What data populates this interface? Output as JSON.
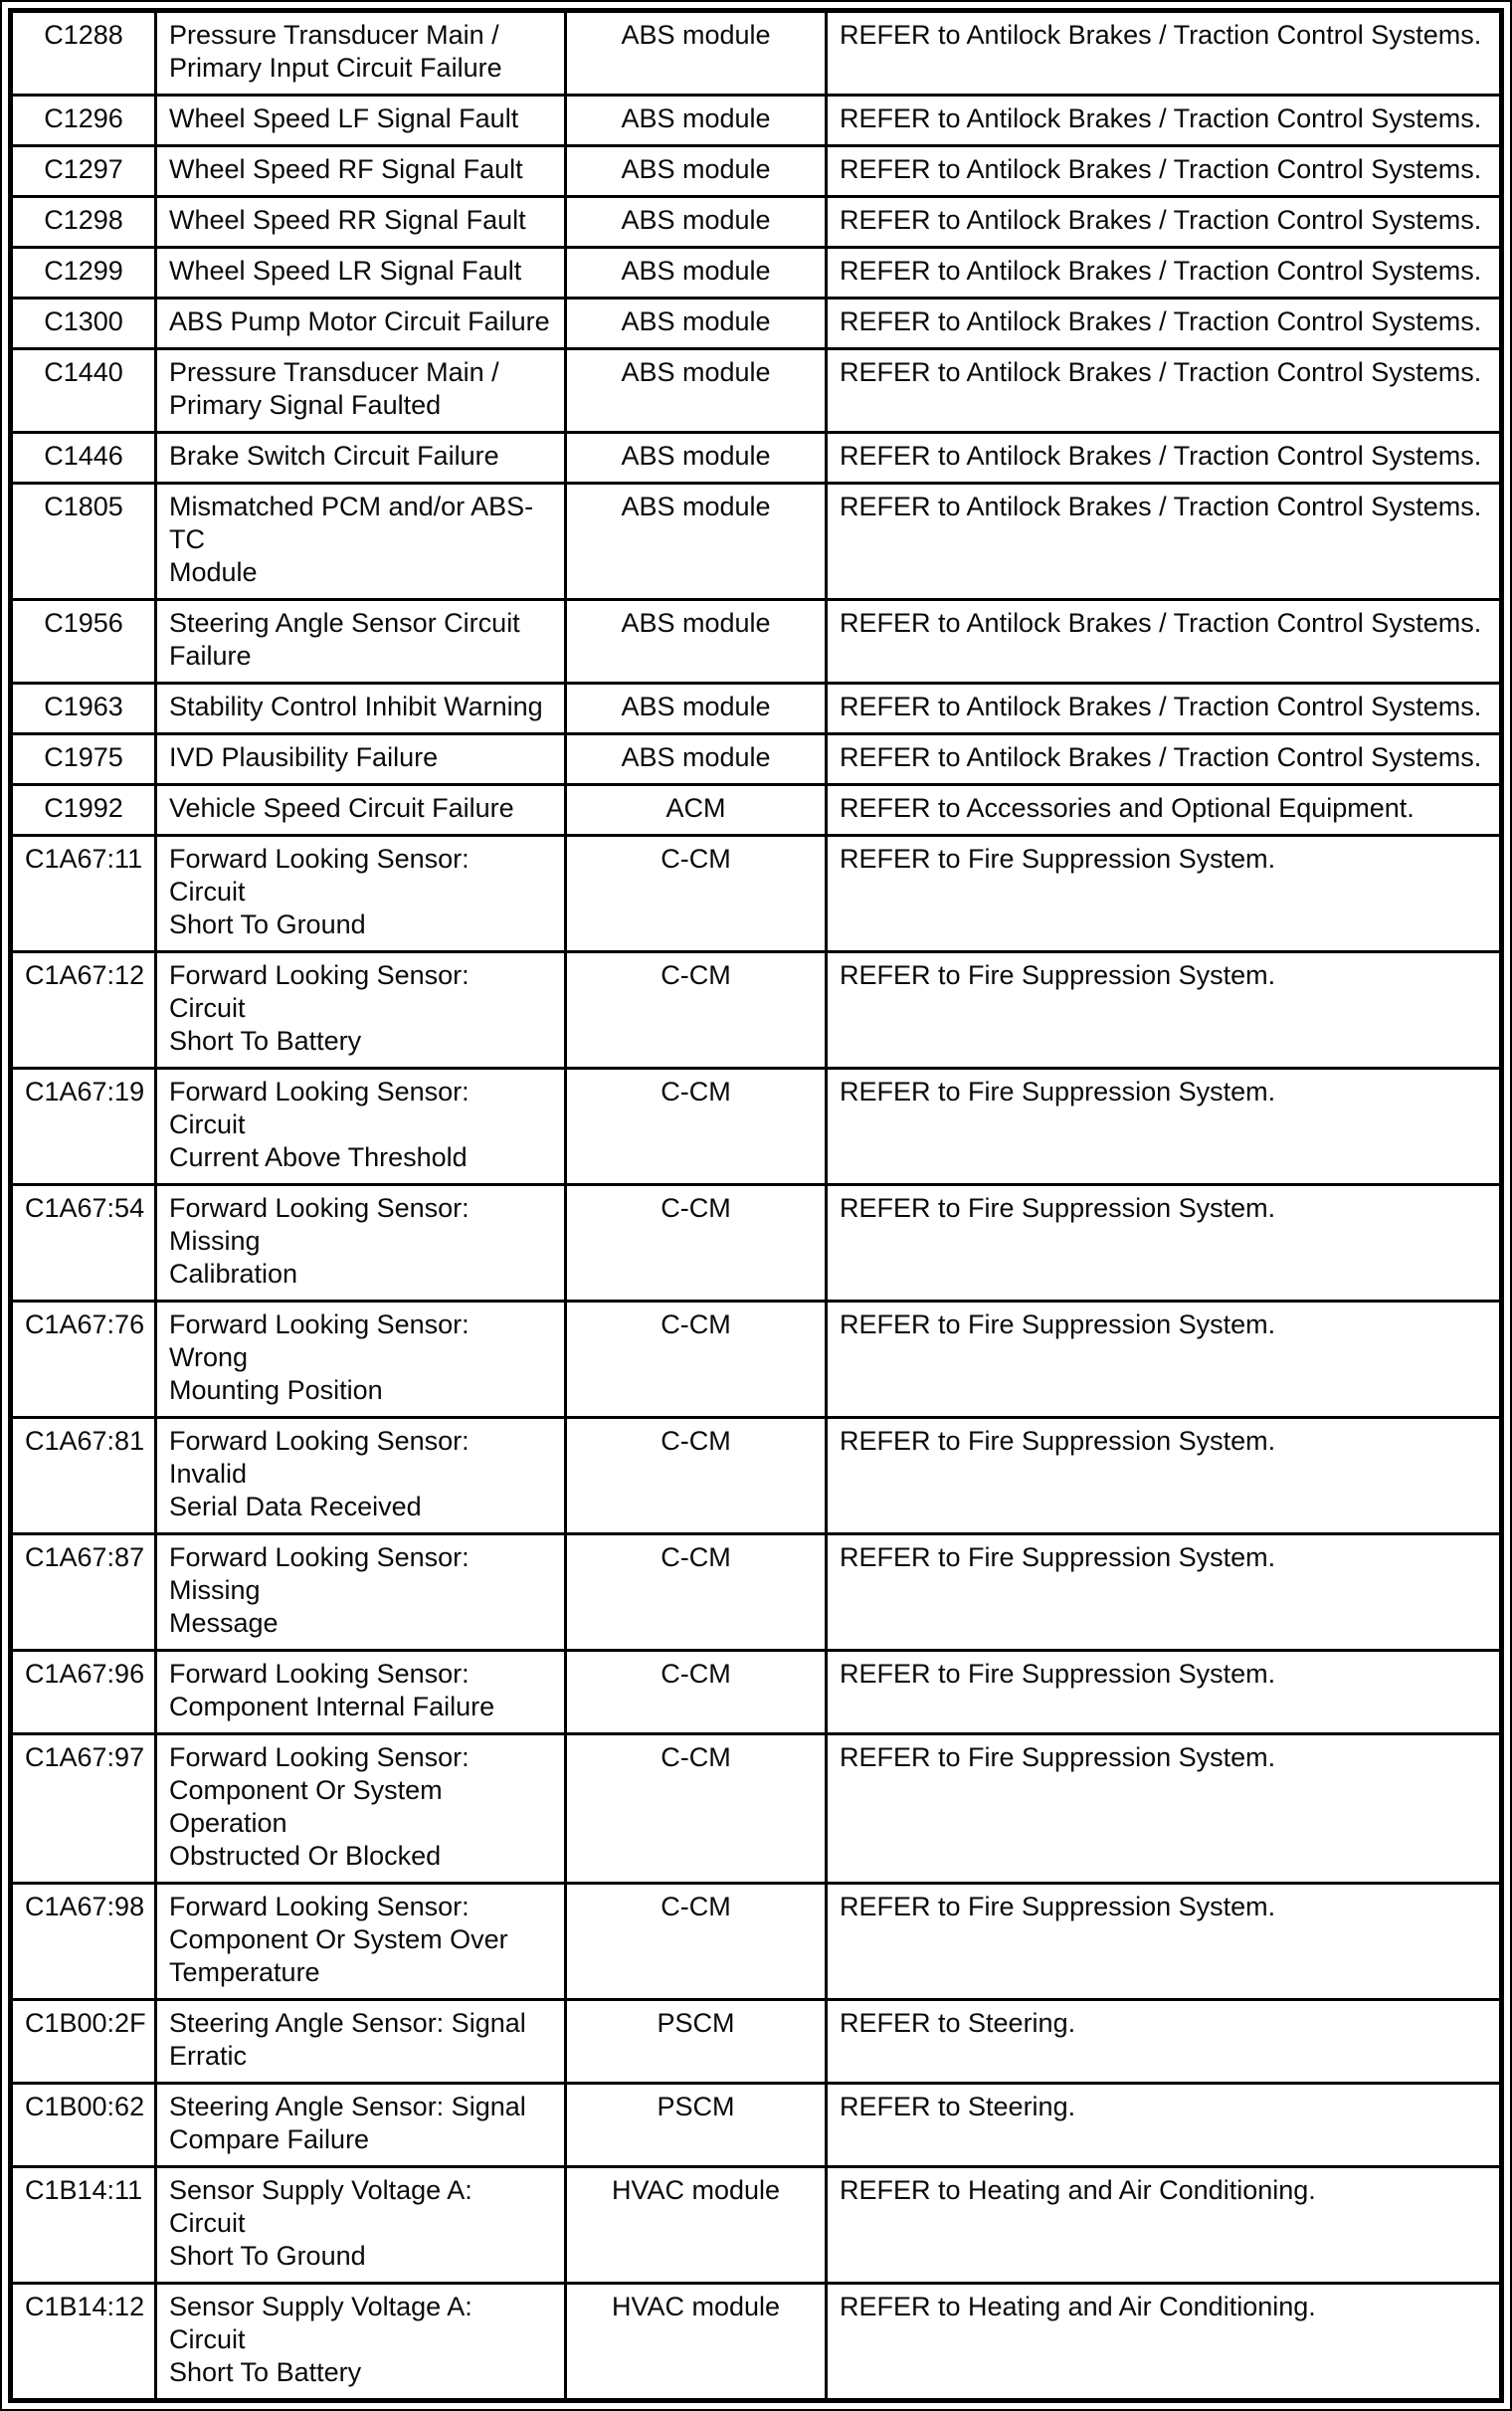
{
  "colors": {
    "background": "#ffffff",
    "border": "#000000",
    "text": "#0a0a0a"
  },
  "table": {
    "rows": [
      {
        "code": "C1288",
        "description": "Pressure Transducer Main /\nPrimary Input Circuit Failure",
        "module": "ABS module",
        "action": "REFER to Antilock Brakes / Traction Control Systems."
      },
      {
        "code": "C1296",
        "description": "Wheel Speed LF Signal Fault",
        "module": "ABS module",
        "action": "REFER to Antilock Brakes / Traction Control Systems."
      },
      {
        "code": "C1297",
        "description": "Wheel Speed RF Signal Fault",
        "module": "ABS module",
        "action": "REFER to Antilock Brakes / Traction Control Systems."
      },
      {
        "code": "C1298",
        "description": "Wheel Speed RR Signal Fault",
        "module": "ABS module",
        "action": "REFER to Antilock Brakes / Traction Control Systems."
      },
      {
        "code": "C1299",
        "description": "Wheel Speed LR Signal Fault",
        "module": "ABS module",
        "action": "REFER to Antilock Brakes / Traction Control Systems."
      },
      {
        "code": "C1300",
        "description": "ABS Pump Motor Circuit Failure",
        "module": "ABS module",
        "action": "REFER to Antilock Brakes / Traction Control Systems."
      },
      {
        "code": "C1440",
        "description": "Pressure Transducer Main /\nPrimary Signal Faulted",
        "module": "ABS module",
        "action": "REFER to Antilock Brakes / Traction Control Systems."
      },
      {
        "code": "C1446",
        "description": "Brake Switch Circuit Failure",
        "module": "ABS module",
        "action": "REFER to Antilock Brakes / Traction Control Systems."
      },
      {
        "code": "C1805",
        "description": "Mismatched PCM and/or ABS-TC\nModule",
        "module": "ABS module",
        "action": "REFER to Antilock Brakes / Traction Control Systems."
      },
      {
        "code": "C1956",
        "description": "Steering Angle Sensor Circuit\nFailure",
        "module": "ABS module",
        "action": "REFER to Antilock Brakes / Traction Control Systems."
      },
      {
        "code": "C1963",
        "description": "Stability Control Inhibit Warning",
        "module": "ABS module",
        "action": "REFER to Antilock Brakes / Traction Control Systems."
      },
      {
        "code": "C1975",
        "description": "IVD Plausibility Failure",
        "module": "ABS module",
        "action": "REFER to Antilock Brakes / Traction Control Systems."
      },
      {
        "code": "C1992",
        "description": "Vehicle Speed Circuit Failure",
        "module": "ACM",
        "action": "REFER to Accessories and Optional Equipment."
      },
      {
        "code": "C1A67:11",
        "description": "Forward Looking Sensor: Circuit\nShort To Ground",
        "module": "C-CM",
        "action": "REFER to Fire Suppression System."
      },
      {
        "code": "C1A67:12",
        "description": "Forward Looking Sensor: Circuit\nShort To Battery",
        "module": "C-CM",
        "action": "REFER to Fire Suppression System."
      },
      {
        "code": "C1A67:19",
        "description": "Forward Looking Sensor: Circuit\nCurrent Above Threshold",
        "module": "C-CM",
        "action": "REFER to Fire Suppression System."
      },
      {
        "code": "C1A67:54",
        "description": "Forward Looking Sensor: Missing\nCalibration",
        "module": "C-CM",
        "action": "REFER to Fire Suppression System."
      },
      {
        "code": "C1A67:76",
        "description": "Forward Looking Sensor: Wrong\nMounting Position",
        "module": "C-CM",
        "action": "REFER to Fire Suppression System."
      },
      {
        "code": "C1A67:81",
        "description": "Forward Looking Sensor: Invalid\nSerial Data Received",
        "module": "C-CM",
        "action": "REFER to Fire Suppression System."
      },
      {
        "code": "C1A67:87",
        "description": "Forward Looking Sensor: Missing\nMessage",
        "module": "C-CM",
        "action": "REFER to Fire Suppression System."
      },
      {
        "code": "C1A67:96",
        "description": "Forward Looking Sensor:\nComponent Internal Failure",
        "module": "C-CM",
        "action": "REFER to Fire Suppression System."
      },
      {
        "code": "C1A67:97",
        "description": "Forward Looking Sensor:\nComponent Or System Operation\nObstructed Or Blocked",
        "module": "C-CM",
        "action": "REFER to Fire Suppression System."
      },
      {
        "code": "C1A67:98",
        "description": "Forward Looking Sensor:\nComponent Or System Over\nTemperature",
        "module": "C-CM",
        "action": "REFER to Fire Suppression System."
      },
      {
        "code": "C1B00:2F",
        "description": "Steering Angle Sensor: Signal\nErratic",
        "module": "PSCM",
        "action": "REFER to Steering."
      },
      {
        "code": "C1B00:62",
        "description": "Steering Angle Sensor: Signal\nCompare Failure",
        "module": "PSCM",
        "action": "REFER to Steering."
      },
      {
        "code": "C1B14:11",
        "description": "Sensor Supply Voltage A: Circuit\nShort To Ground",
        "module": "HVAC module",
        "action": "REFER to Heating and Air Conditioning."
      },
      {
        "code": "C1B14:12",
        "description": "Sensor Supply Voltage A: Circuit\nShort To Battery",
        "module": "HVAC module",
        "action": "REFER to Heating and Air Conditioning."
      }
    ]
  }
}
